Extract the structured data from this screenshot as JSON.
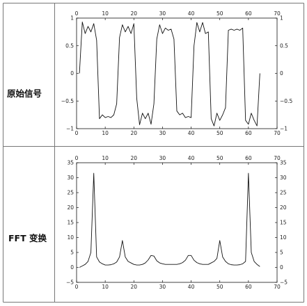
{
  "rows": [
    {
      "label": "原始信号"
    },
    {
      "label": "FFT 变换"
    }
  ],
  "chart_data": [
    {
      "type": "line",
      "title": "",
      "xlabel": "",
      "ylabel": "",
      "xlim": [
        0,
        70
      ],
      "ylim": [
        -1,
        1
      ],
      "xticks": [
        0,
        10,
        20,
        30,
        40,
        50,
        60,
        70
      ],
      "yticks": [
        -1,
        -0.5,
        0,
        0.5,
        1
      ],
      "grid": false,
      "series": [
        {
          "x": [
            1,
            2,
            3,
            4,
            5,
            6,
            7,
            8,
            9,
            10,
            11,
            12,
            13,
            14,
            15,
            16,
            17,
            18,
            19,
            20,
            21,
            22,
            23,
            24,
            25,
            26,
            27,
            28,
            29,
            30,
            31,
            32,
            33,
            34,
            35,
            36,
            37,
            38,
            39,
            40,
            41,
            42,
            43,
            44,
            45,
            46,
            47,
            48,
            49,
            50,
            51,
            52,
            53,
            54,
            55,
            56,
            57,
            58,
            59,
            60,
            61,
            62,
            63,
            64
          ],
          "y": [
            0,
            0.93,
            0.72,
            0.85,
            0.75,
            0.9,
            0.6,
            -0.82,
            -0.75,
            -0.8,
            -0.78,
            -0.8,
            -0.75,
            -0.55,
            0.65,
            0.88,
            0.75,
            0.85,
            0.72,
            0.9,
            -0.45,
            -0.93,
            -0.72,
            -0.82,
            -0.72,
            -0.92,
            -0.55,
            0.62,
            0.88,
            0.72,
            0.82,
            0.78,
            0.8,
            0.62,
            -0.68,
            -0.75,
            -0.72,
            -0.8,
            -0.78,
            -0.8,
            0.5,
            0.92,
            0.75,
            0.92,
            0.72,
            0.75,
            -0.82,
            -0.95,
            -0.72,
            -0.85,
            -0.75,
            -0.62,
            0.78,
            0.8,
            0.78,
            0.8,
            0.78,
            0.82,
            -0.85,
            -0.92,
            -0.72,
            -0.85,
            -0.95,
            0
          ]
        }
      ]
    },
    {
      "type": "line",
      "title": "",
      "xlabel": "",
      "ylabel": "",
      "xlim": [
        0,
        70
      ],
      "ylim": [
        -5,
        35
      ],
      "xticks": [
        0,
        10,
        20,
        30,
        40,
        50,
        60,
        70
      ],
      "yticks": [
        -5,
        0,
        5,
        10,
        15,
        20,
        25,
        30,
        35
      ],
      "grid": false,
      "series": [
        {
          "x": [
            1,
            2,
            3,
            4,
            5,
            6,
            7,
            8,
            9,
            10,
            11,
            12,
            13,
            14,
            15,
            16,
            17,
            18,
            19,
            20,
            21,
            22,
            23,
            24,
            25,
            26,
            27,
            28,
            29,
            30,
            31,
            32,
            33,
            34,
            35,
            36,
            37,
            38,
            39,
            40,
            41,
            42,
            43,
            44,
            45,
            46,
            47,
            48,
            49,
            50,
            51,
            52,
            53,
            54,
            55,
            56,
            57,
            58,
            59,
            60,
            61,
            62,
            63,
            64
          ],
          "y": [
            0,
            0.5,
            1,
            2,
            5,
            31.5,
            3.5,
            1.8,
            1.2,
            0.8,
            0.8,
            0.9,
            1.2,
            1.8,
            3.5,
            9,
            3.5,
            2,
            1.5,
            1,
            0.8,
            0.8,
            1,
            1.5,
            2.5,
            4,
            3.8,
            2.2,
            1.5,
            1.2,
            1,
            1,
            1,
            1,
            1,
            1.2,
            1.6,
            2.4,
            4,
            4,
            2.4,
            1.6,
            1.2,
            1,
            1,
            1,
            1.5,
            2,
            3,
            9,
            3.5,
            2,
            1.2,
            0.9,
            0.8,
            0.8,
            0.9,
            1.2,
            2,
            31.5,
            5,
            2,
            1,
            0.3
          ]
        }
      ]
    }
  ]
}
